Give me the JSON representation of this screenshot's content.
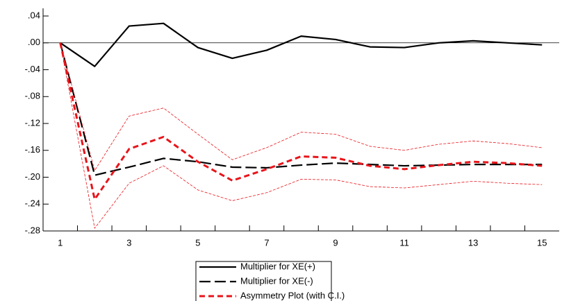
{
  "chart_data": {
    "type": "line",
    "categories": [
      "1",
      null,
      "3",
      null,
      "5",
      null,
      "7",
      null,
      "9",
      null,
      "11",
      null,
      "13",
      null,
      "15"
    ],
    "ylim": [
      -0.28,
      0.0514
    ],
    "yticks": [
      {
        "value": 0.04,
        "label": ".04"
      },
      {
        "value": 0,
        "label": ".00"
      },
      {
        "value": -0.04,
        "label": "-.04"
      },
      {
        "value": -0.08,
        "label": "-.08"
      },
      {
        "value": -0.12,
        "label": "-.12"
      },
      {
        "value": -0.16,
        "label": "-.16"
      },
      {
        "value": -0.2,
        "label": "-.20"
      },
      {
        "value": -0.24,
        "label": "-.24"
      },
      {
        "value": -0.28,
        "label": "-.28"
      }
    ],
    "zero_line": true,
    "series": [
      {
        "name": "Multiplier for XE(+)",
        "color": "#000000",
        "width": 2.2,
        "dash": "none",
        "values": [
          0,
          -0.035,
          0.025,
          0.029,
          -0.007,
          -0.023,
          -0.011,
          0.01,
          0.005,
          -0.006,
          -0.007,
          0,
          0.003,
          0,
          -0.003
        ]
      },
      {
        "name": "Multiplier for XE(-)",
        "color": "#000000",
        "width": 2.2,
        "dash": "16 6",
        "values": [
          0,
          -0.197,
          -0.185,
          -0.172,
          -0.177,
          -0.185,
          -0.186,
          -0.182,
          -0.179,
          -0.181,
          -0.183,
          -0.182,
          -0.181,
          -0.181,
          -0.181
        ]
      },
      {
        "name": "Asymmetry Plot (with C.I.)",
        "color": "#e8141a",
        "width": 3,
        "dash": "8 5",
        "values": [
          0,
          -0.233,
          -0.158,
          -0.14,
          -0.177,
          -0.205,
          -0.188,
          -0.169,
          -0.171,
          -0.183,
          -0.188,
          -0.182,
          -0.177,
          -0.179,
          -0.183
        ]
      },
      {
        "color": "#e8141a",
        "width": 0.8,
        "dash": "4 2",
        "values": [
          0,
          -0.19,
          -0.109,
          -0.097,
          -0.136,
          -0.174,
          -0.156,
          -0.133,
          -0.136,
          -0.154,
          -0.16,
          -0.151,
          -0.146,
          -0.15,
          -0.156
        ]
      },
      {
        "color": "#e8141a",
        "width": 0.8,
        "dash": "4 2",
        "values": [
          0,
          -0.276,
          -0.209,
          -0.183,
          -0.219,
          -0.235,
          -0.223,
          -0.203,
          -0.204,
          -0.214,
          -0.216,
          -0.211,
          -0.206,
          -0.209,
          -0.211
        ]
      }
    ]
  }
}
